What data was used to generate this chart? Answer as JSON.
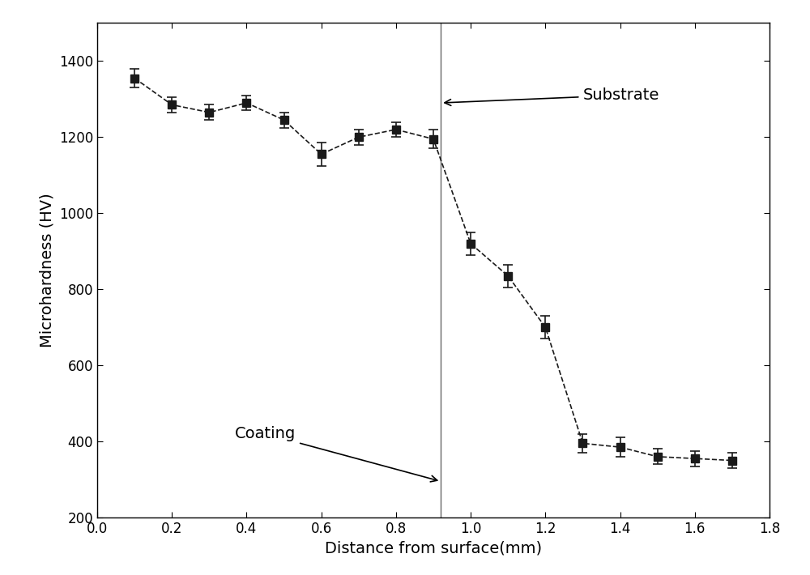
{
  "x": [
    0.1,
    0.2,
    0.3,
    0.4,
    0.5,
    0.6,
    0.7,
    0.8,
    0.9,
    1.0,
    1.1,
    1.2,
    1.3,
    1.4,
    1.5,
    1.6,
    1.7
  ],
  "y": [
    1355,
    1285,
    1265,
    1290,
    1245,
    1155,
    1200,
    1220,
    1195,
    920,
    835,
    700,
    395,
    385,
    360,
    355,
    350
  ],
  "yerr": [
    25,
    20,
    20,
    20,
    20,
    30,
    20,
    20,
    25,
    30,
    30,
    30,
    25,
    25,
    20,
    20,
    20
  ],
  "xlabel": "Distance from surface(mm)",
  "ylabel": "Microhardness (HV)",
  "xlim": [
    0.0,
    1.8
  ],
  "ylim": [
    200,
    1500
  ],
  "xticks": [
    0.0,
    0.2,
    0.4,
    0.6,
    0.8,
    1.0,
    1.2,
    1.4,
    1.6,
    1.8
  ],
  "yticks": [
    200,
    400,
    600,
    800,
    1000,
    1200,
    1400
  ],
  "vline_x": 0.92,
  "coating_label": "Coating",
  "substrate_label": "Substrate",
  "line_color": "#1a1a1a",
  "marker_color": "#1a1a1a",
  "background_color": "#ffffff",
  "font_size_label": 14,
  "font_size_tick": 12,
  "font_size_annotation": 14
}
